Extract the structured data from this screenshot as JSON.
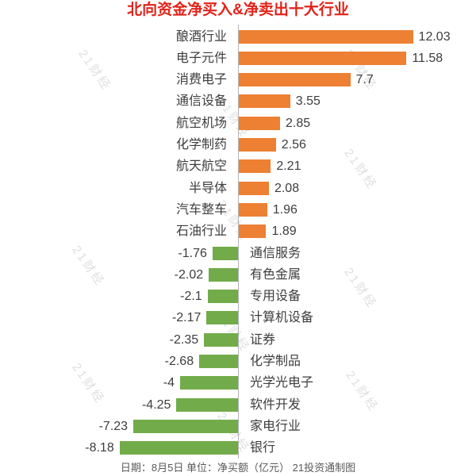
{
  "title": "北向资金净买入&净卖出十大行业",
  "footer": "日期：8月5日 单位：净买额（亿元） 21投资通制图",
  "watermark": "21财经",
  "colors": {
    "positive_bar": "#ed8033",
    "negative_bar": "#72ac4a",
    "title": "#e2231a",
    "axis_line": "#b3b3b3",
    "label_text": "#3d3d3d",
    "footer_text": "#595959",
    "watermark_text": "#d9d9d9",
    "background": "#ffffff"
  },
  "chart_data": {
    "type": "bar",
    "orientation": "horizontal",
    "title": "北向资金净买入&净卖出十大行业",
    "unit": "净买额（亿元）",
    "date": "8月5日",
    "source": "21投资通制图",
    "xlim": [
      -16.4,
      16.4
    ],
    "grid": false,
    "legend": false,
    "categories": [
      "酿酒行业",
      "电子元件",
      "消费电子",
      "通信设备",
      "航空机场",
      "化学制药",
      "航天航空",
      "半导体",
      "汽车整车",
      "石油行业",
      "通信服务",
      "有色金属",
      "专用设备",
      "计算机设备",
      "证券",
      "化学制品",
      "光学光电子",
      "软件开发",
      "家电行业",
      "银行"
    ],
    "values": [
      12.03,
      11.58,
      7.7,
      3.55,
      2.85,
      2.56,
      2.21,
      2.08,
      1.96,
      1.89,
      -1.76,
      -2.02,
      -2.1,
      -2.17,
      -2.35,
      -2.68,
      -4,
      -4.25,
      -7.23,
      -8.18
    ],
    "value_labels": [
      "12.03",
      "11.58",
      "7.7",
      "3.55",
      "2.85",
      "2.56",
      "2.21",
      "2.08",
      "1.96",
      "1.89",
      "-1.76",
      "-2.02",
      "-2.1",
      "-2.17",
      "-2.35",
      "-2.68",
      "-4",
      "-4.25",
      "-7.23",
      "-8.18"
    ]
  }
}
